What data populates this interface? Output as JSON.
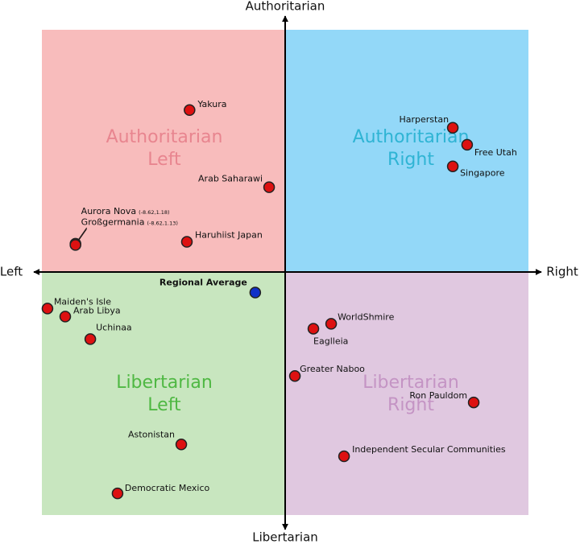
{
  "chart_data": {
    "type": "scatter",
    "xlim": [
      -10,
      10
    ],
    "ylim": [
      -10,
      10
    ],
    "top_label": "Authoritarian",
    "bottom_label": "Libertarian",
    "left_label": "Left",
    "right_label": "Right",
    "point_color": "#dd1111",
    "quadrants": [
      {
        "lines": [
          "Authoritarian",
          "Left"
        ],
        "background": "#f8bcbc",
        "color": "#e8858f"
      },
      {
        "lines": [
          "Authoritarian",
          "Right"
        ],
        "background": "#93d8f8",
        "color": "#2fb4d4"
      },
      {
        "lines": [
          "Libertarian",
          "Left"
        ],
        "background": "#c8e6bf",
        "color": "#4fb843"
      },
      {
        "lines": [
          "Libertarian",
          "Right"
        ],
        "background": "#e0c8e0",
        "color": "#c494c4"
      }
    ],
    "points": [
      {
        "label": "Yakura",
        "x": -3.93,
        "y": 6.69
      },
      {
        "label": "Arab Saharawi",
        "x": -0.66,
        "y": 3.51
      },
      {
        "label": "Aurora Nova",
        "note": "(-8.62,1.18)",
        "x": -8.62,
        "y": 1.18
      },
      {
        "label": "Großgermania",
        "note": "(-8.62,1.13)",
        "x": -8.62,
        "y": 1.13
      },
      {
        "label": "Haruhiist Japan",
        "x": -4.04,
        "y": 1.26
      },
      {
        "label": "Harperstan",
        "x": 6.89,
        "y": 5.96
      },
      {
        "label": "Free Utah",
        "x": 7.48,
        "y": 5.26
      },
      {
        "label": "Singapore",
        "x": 6.89,
        "y": 4.37
      },
      {
        "label": "Regional Average",
        "x": -1.23,
        "y": -0.83,
        "color": "#1030c8"
      },
      {
        "label": "Maiden's Isle",
        "x": -9.77,
        "y": -1.49
      },
      {
        "label": "Arab Libya",
        "x": -9.04,
        "y": -1.82
      },
      {
        "label": "Uchinaa",
        "x": -8.01,
        "y": -2.75
      },
      {
        "label": "WorldShmire",
        "x": 1.89,
        "y": -2.12
      },
      {
        "label": "Eaglleia",
        "x": 1.16,
        "y": -2.32
      },
      {
        "label": "Greater Naboo",
        "x": 0.4,
        "y": -4.27
      },
      {
        "label": "Ron Pauldom",
        "x": 7.75,
        "y": -5.36
      },
      {
        "label": "Astonistan",
        "x": -4.27,
        "y": -7.09
      },
      {
        "label": "Independent Secular Communities",
        "x": 2.42,
        "y": -7.58
      },
      {
        "label": "Democratic Mexico",
        "x": -6.89,
        "y": -9.11
      }
    ]
  }
}
